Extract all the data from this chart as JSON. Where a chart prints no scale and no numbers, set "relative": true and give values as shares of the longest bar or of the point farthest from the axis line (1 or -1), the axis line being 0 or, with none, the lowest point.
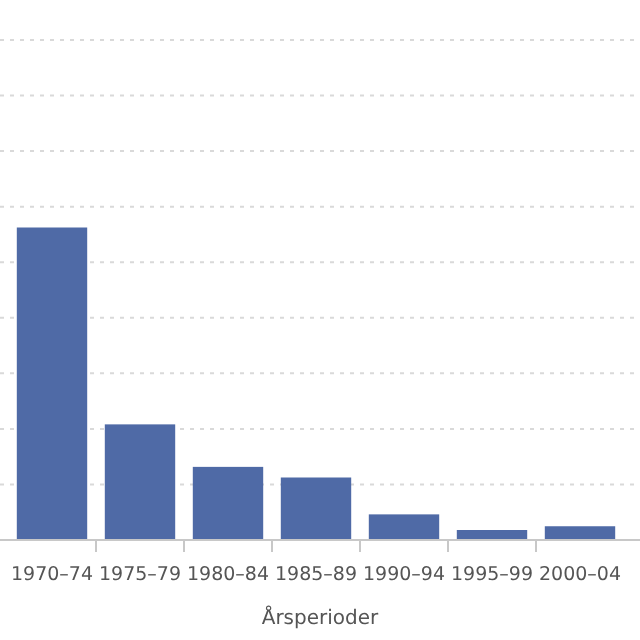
{
  "chart_data": {
    "type": "bar",
    "xlabel": "Årsperioder",
    "categories": [
      "1970–74",
      "1975–79",
      "1980–84",
      "1985–89",
      "1990–94",
      "1995–99",
      "2000–04"
    ],
    "values": [
      1,
      0.37,
      0.234,
      0.2,
      0.082,
      0.032,
      0.044
    ],
    "color": "#4f6aa6",
    "relative": true,
    "grid": "y"
  }
}
